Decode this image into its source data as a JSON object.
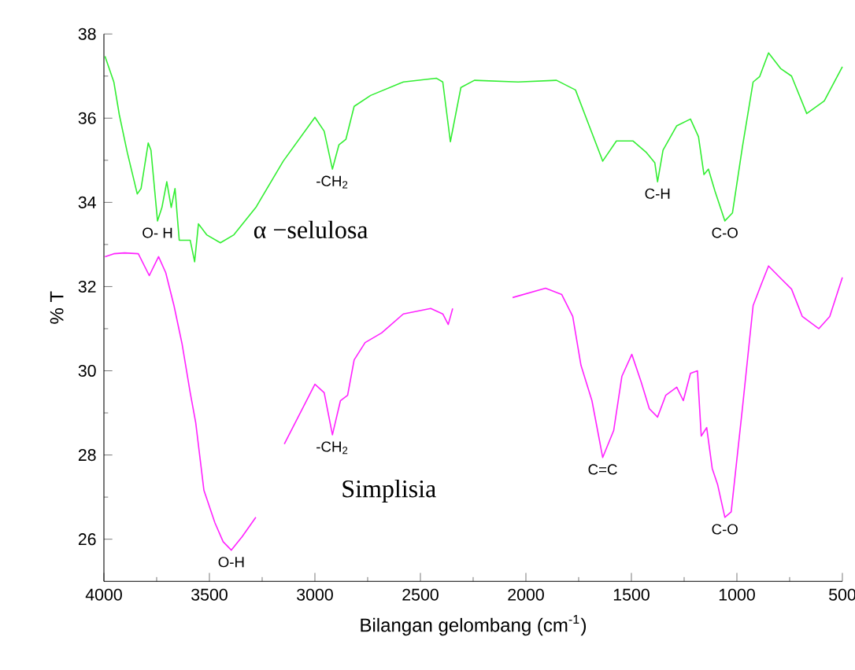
{
  "chart_data": {
    "type": "line",
    "xlabel": "Bilangan gelombang (cm$^{-1}$)",
    "ylabel": "% T",
    "xlim": [
      4000,
      500
    ],
    "ylim": [
      25,
      38
    ],
    "xticks": [
      4000,
      3500,
      3000,
      2500,
      2000,
      1500,
      1000,
      500
    ],
    "yticks": [
      26,
      28,
      30,
      32,
      34,
      36,
      38
    ],
    "grid": false,
    "legend": false,
    "marker": "none",
    "line_style": "solid",
    "series": [
      {
        "name": "α −selulosa",
        "color": "#33ee33",
        "x": [
          3995,
          3953,
          3927,
          3889,
          3842,
          3824,
          3790,
          3777,
          3746,
          3725,
          3702,
          3681,
          3663,
          3643,
          3591,
          3570,
          3552,
          3513,
          3448,
          3384,
          3280,
          3150,
          3000,
          2956,
          2917,
          2886,
          2853,
          2814,
          2736,
          2581,
          2425,
          2394,
          2358,
          2308,
          2244,
          2037,
          1855,
          1765,
          1700,
          1636,
          1571,
          1493,
          1428,
          1389,
          1376,
          1350,
          1285,
          1220,
          1182,
          1156,
          1135,
          1104,
          1057,
          1021,
          974,
          923,
          892,
          850,
          793,
          741,
          669,
          586,
          500
        ],
        "values": [
          37.47,
          36.86,
          36.08,
          35.18,
          34.2,
          34.33,
          35.41,
          35.24,
          33.56,
          33.88,
          34.49,
          33.88,
          34.33,
          33.1,
          33.1,
          32.59,
          33.49,
          33.23,
          33.04,
          33.23,
          33.88,
          34.98,
          36.02,
          35.69,
          34.79,
          35.37,
          35.5,
          36.28,
          36.54,
          36.86,
          36.95,
          36.86,
          35.44,
          36.73,
          36.9,
          36.86,
          36.9,
          36.67,
          35.82,
          34.98,
          35.46,
          35.46,
          35.18,
          34.94,
          34.49,
          35.24,
          35.82,
          35.98,
          35.56,
          34.66,
          34.79,
          34.27,
          33.56,
          33.75,
          35.31,
          36.86,
          36.99,
          37.55,
          37.18,
          37.0,
          36.11,
          36.41,
          37.22
        ]
      },
      {
        "name": "Simplisia",
        "color": "#ff22ff",
        "x": [
          3995,
          3953,
          3902,
          3837,
          3785,
          3741,
          3707,
          3668,
          3630,
          3591,
          3565,
          3526,
          3474,
          3435,
          3396,
          3345,
          3280,
          3210,
          3145,
          3000,
          2956,
          2917,
          2879,
          2845,
          2814,
          2762,
          2684,
          2581,
          2451,
          2394,
          2368,
          2347,
          2200,
          2063,
          1907,
          1830,
          1778,
          1739,
          1687,
          1636,
          1584,
          1545,
          1498,
          1454,
          1415,
          1376,
          1337,
          1285,
          1254,
          1220,
          1187,
          1169,
          1143,
          1117,
          1091,
          1057,
          1027,
          974,
          923,
          884,
          850,
          793,
          741,
          690,
          612,
          560,
          500
        ],
        "values": [
          32.71,
          32.78,
          32.8,
          32.78,
          32.26,
          32.71,
          32.33,
          31.55,
          30.65,
          29.48,
          28.77,
          27.16,
          26.39,
          25.94,
          25.74,
          26.06,
          26.52,
          null,
          28.26,
          29.68,
          29.48,
          28.48,
          29.29,
          29.42,
          30.26,
          30.67,
          30.9,
          31.35,
          31.48,
          31.35,
          31.1,
          31.48,
          null,
          31.74,
          31.96,
          31.81,
          31.29,
          30.13,
          29.29,
          27.94,
          28.58,
          29.87,
          30.39,
          29.74,
          29.1,
          28.9,
          29.42,
          29.61,
          29.29,
          29.94,
          30.0,
          28.45,
          28.65,
          27.68,
          27.29,
          26.52,
          26.65,
          29.1,
          31.55,
          32.06,
          32.49,
          32.2,
          31.94,
          31.29,
          31.0,
          31.29,
          32.22
        ]
      }
    ],
    "annotations": [
      {
        "text": "O- H",
        "x": 3746,
        "y": 33.56
      },
      {
        "text": "-CH$_{2}$",
        "x": 2917,
        "y": 34.79
      },
      {
        "text": "C-H",
        "x": 1376,
        "y": 34.49
      },
      {
        "text": "C-O",
        "x": 1057,
        "y": 33.56
      },
      {
        "text": "O-H",
        "x": 3396,
        "y": 25.74
      },
      {
        "text": "-CH$_{2}$",
        "x": 2917,
        "y": 28.48
      },
      {
        "text": "C=C",
        "x": 1636,
        "y": 27.94
      },
      {
        "text": "C-O",
        "x": 1057,
        "y": 26.52
      }
    ]
  }
}
